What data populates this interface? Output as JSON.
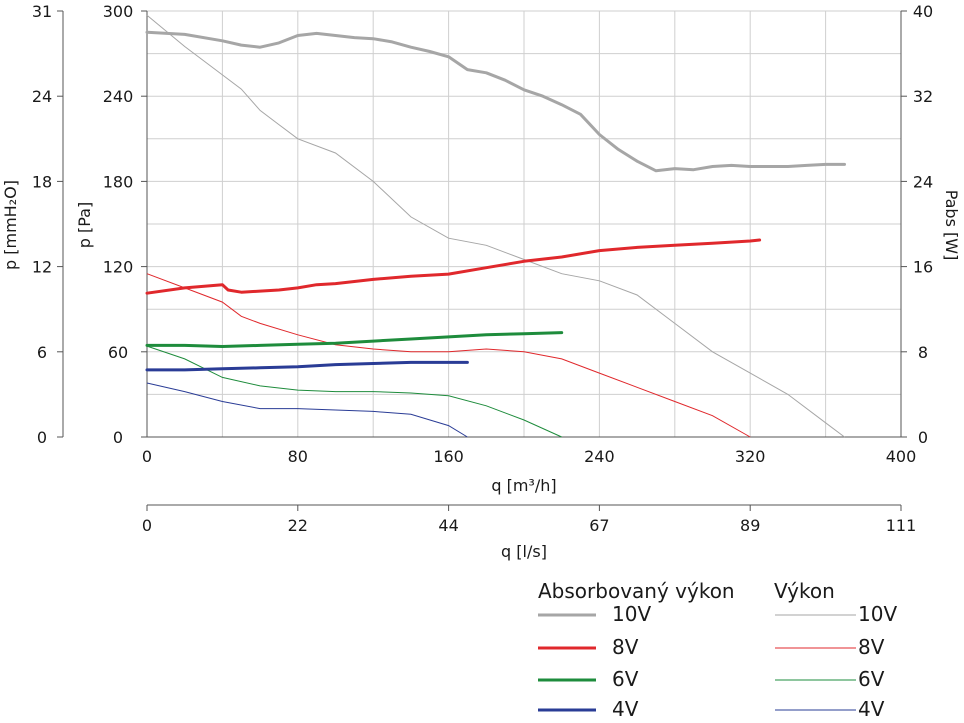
{
  "chart_data": {
    "type": "line",
    "xlabel": "q [m³/h]",
    "x_ticks": [
      "0",
      "80",
      "160",
      "240",
      "320",
      "400"
    ],
    "xlim": [
      0,
      400
    ],
    "xlabel2": "q [l/s]",
    "x2_ticks": [
      "0",
      "22",
      "44",
      "67",
      "89",
      "111"
    ],
    "ylabel_pa": "p [Pa]",
    "y_pa_ticks": [
      "0",
      "60",
      "120",
      "180",
      "240",
      "300"
    ],
    "ylim": [
      0,
      300
    ],
    "ylabel_mmh2o": "p [mmH₂O]",
    "y_mm_ticks": [
      "0",
      "6",
      "12",
      "18",
      "24",
      "31"
    ],
    "ylabel_w": "Pabs [W]",
    "y_w_ticks": [
      "0",
      "8",
      "16",
      "24",
      "32",
      "40"
    ],
    "ylim_w": [
      0,
      40
    ],
    "grid": true,
    "legend_placement": "bottom-right",
    "legend": {
      "title_power": "Absorbovaný výkon",
      "title_perf": "Výkon",
      "labels": [
        "10V",
        "8V",
        "6V",
        "4V"
      ]
    },
    "power_series": [
      {
        "name": "10V",
        "color": "#a6a6a6",
        "unit": "W",
        "x": [
          0,
          20,
          40,
          50,
          60,
          70,
          80,
          90,
          100,
          110,
          120,
          130,
          140,
          150,
          160,
          170,
          180,
          190,
          200,
          210,
          220,
          230,
          240,
          250,
          260,
          270,
          280,
          290,
          300,
          310,
          320,
          330,
          340,
          350,
          360,
          370
        ],
        "y": [
          38.0,
          37.8,
          37.2,
          36.8,
          36.6,
          37.0,
          37.7,
          37.9,
          37.7,
          37.5,
          37.4,
          37.1,
          36.6,
          36.2,
          35.7,
          34.5,
          34.2,
          33.5,
          32.6,
          32.0,
          31.2,
          30.3,
          28.4,
          27.0,
          25.9,
          25.0,
          25.2,
          25.1,
          25.4,
          25.5,
          25.4,
          25.4,
          25.4,
          25.5,
          25.6,
          25.6
        ]
      },
      {
        "name": "8V",
        "color": "#e0282c",
        "unit": "W",
        "x": [
          0,
          20,
          40,
          43,
          50,
          60,
          70,
          80,
          90,
          100,
          120,
          140,
          160,
          180,
          200,
          220,
          240,
          260,
          280,
          300,
          320,
          325
        ],
        "y": [
          13.5,
          14.0,
          14.3,
          13.8,
          13.6,
          13.7,
          13.8,
          14.0,
          14.3,
          14.4,
          14.8,
          15.1,
          15.3,
          15.9,
          16.5,
          16.9,
          17.5,
          17.8,
          18.0,
          18.2,
          18.4,
          18.5
        ]
      },
      {
        "name": "6V",
        "color": "#1e8c3c",
        "unit": "W",
        "x": [
          0,
          20,
          40,
          60,
          80,
          100,
          120,
          140,
          160,
          180,
          200,
          220
        ],
        "y": [
          8.6,
          8.6,
          8.5,
          8.6,
          8.7,
          8.8,
          9.0,
          9.2,
          9.4,
          9.6,
          9.7,
          9.8
        ]
      },
      {
        "name": "4V",
        "color": "#2a3c96",
        "unit": "W",
        "x": [
          0,
          20,
          40,
          60,
          80,
          100,
          120,
          140,
          160,
          170
        ],
        "y": [
          6.3,
          6.3,
          6.4,
          6.5,
          6.6,
          6.8,
          6.9,
          7.0,
          7.0,
          7.0
        ]
      }
    ],
    "pressure_series": [
      {
        "name": "10V",
        "color": "#a6a6a6",
        "unit": "Pa",
        "x": [
          0,
          20,
          40,
          50,
          60,
          70,
          80,
          100,
          120,
          140,
          160,
          180,
          200,
          220,
          240,
          260,
          280,
          300,
          320,
          340,
          360,
          370
        ],
        "y": [
          297,
          275,
          255,
          245,
          230,
          220,
          210,
          200,
          180,
          155,
          140,
          135,
          125,
          115,
          110,
          100,
          80,
          60,
          45,
          30,
          10,
          0
        ]
      },
      {
        "name": "8V",
        "color": "#e0282c",
        "unit": "Pa",
        "x": [
          0,
          20,
          40,
          50,
          60,
          80,
          100,
          120,
          140,
          160,
          180,
          200,
          220,
          240,
          260,
          280,
          300,
          320
        ],
        "y": [
          115,
          105,
          95,
          85,
          80,
          72,
          65,
          62,
          60,
          60,
          62,
          60,
          55,
          45,
          35,
          25,
          15,
          0
        ]
      },
      {
        "name": "6V",
        "color": "#1e8c3c",
        "unit": "Pa",
        "x": [
          0,
          20,
          40,
          60,
          80,
          100,
          120,
          140,
          160,
          180,
          200,
          220
        ],
        "y": [
          64,
          55,
          42,
          36,
          33,
          32,
          32,
          31,
          29,
          22,
          12,
          0
        ]
      },
      {
        "name": "4V",
        "color": "#2a3c96",
        "unit": "Pa",
        "x": [
          0,
          20,
          40,
          60,
          80,
          100,
          120,
          140,
          160,
          170
        ],
        "y": [
          38,
          32,
          25,
          20,
          20,
          19,
          18,
          16,
          8,
          0
        ]
      }
    ]
  }
}
